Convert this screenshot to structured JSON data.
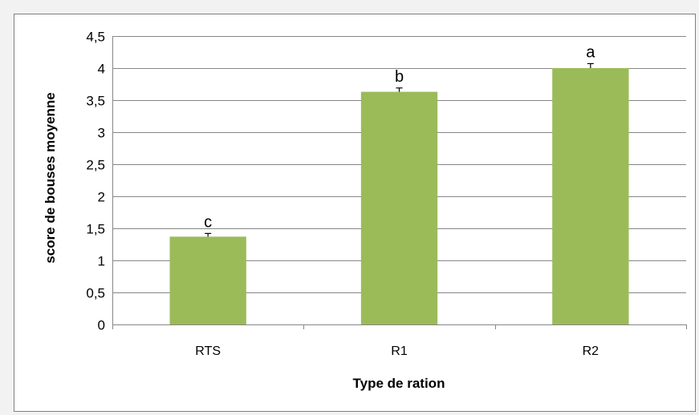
{
  "chart_data": {
    "type": "bar",
    "title": "",
    "xlabel": "Type de ration",
    "ylabel": "score de bouses moyenne",
    "categories": [
      "RTS",
      "R1",
      "R2"
    ],
    "values": [
      1.37,
      3.63,
      4.0
    ],
    "error": [
      0.05,
      0.06,
      0.07
    ],
    "annotations": [
      "c",
      "b",
      "a"
    ],
    "ylim": [
      0,
      4.5
    ],
    "yticks": [
      "0",
      "0,5",
      "1",
      "1,5",
      "2",
      "2,5",
      "3",
      "3,5",
      "4",
      "4,5"
    ],
    "ytick_values": [
      0,
      0.5,
      1,
      1.5,
      2,
      2.5,
      3,
      3.5,
      4,
      4.5
    ],
    "grid": true,
    "legend": "none",
    "colors": {
      "bar": "#9bbb59",
      "grid": "#868686",
      "axis": "#868686",
      "frame": "#7f7f7f",
      "background": "#f2f2f2"
    }
  }
}
